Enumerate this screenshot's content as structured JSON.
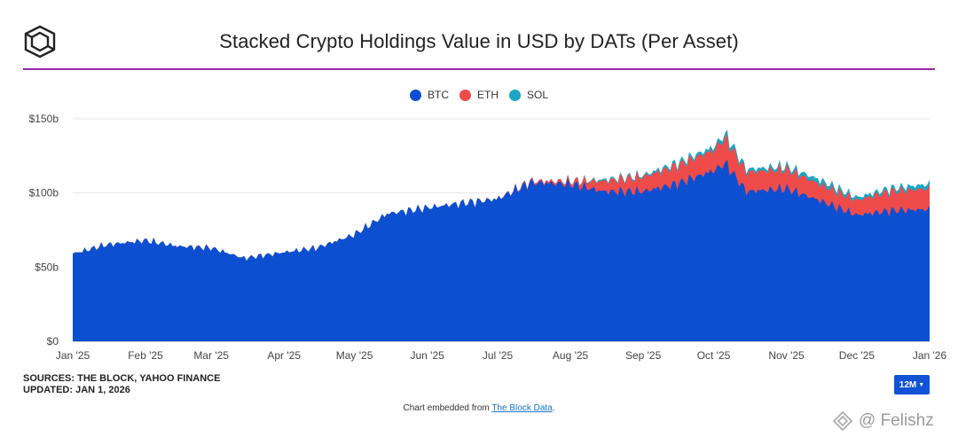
{
  "header": {
    "title": "Stacked Crypto Holdings Value in USD by DATs (Per Asset)"
  },
  "footer": {
    "sources": "SOURCES: THE BLOCK, YAHOO FINANCE",
    "updated": "UPDATED: JAN 1, 2026",
    "range_button": "12M",
    "embed_prefix": "Chart embedded from ",
    "embed_link": "The Block Data",
    "embed_suffix": "."
  },
  "watermark": "@ Felishz",
  "colors": {
    "btc": "#0d4fd1",
    "eth": "#ef4b4b",
    "sol": "#1aa6c4",
    "accent": "#9c27b0"
  },
  "icons": [
    "the-block-logo-icon",
    "chevron-down-icon",
    "watermark-logo-icon"
  ],
  "chart_data": {
    "type": "area",
    "stacked": true,
    "title": "Stacked Crypto Holdings Value in USD by DATs (Per Asset)",
    "y_ticks": [
      "$0",
      "$50b",
      "$100b",
      "$150b"
    ],
    "ylim": [
      0,
      150
    ],
    "x_ticks": [
      "Jan '25",
      "Feb '25",
      "Mar '25",
      "Apr '25",
      "May '25",
      "Jun '25",
      "Jul '25",
      "Aug '25",
      "Sep '25",
      "Oct '25",
      "Nov '25",
      "Dec '25",
      "Jan '26"
    ],
    "legend_position": "top-center",
    "grid": true,
    "x": [
      "2025-01-01",
      "2025-01-15",
      "2025-02-01",
      "2025-02-15",
      "2025-03-01",
      "2025-03-15",
      "2025-04-01",
      "2025-04-15",
      "2025-05-01",
      "2025-05-15",
      "2025-06-01",
      "2025-06-15",
      "2025-07-01",
      "2025-07-15",
      "2025-08-01",
      "2025-08-15",
      "2025-09-01",
      "2025-09-15",
      "2025-10-01",
      "2025-10-06",
      "2025-10-15",
      "2025-11-01",
      "2025-11-15",
      "2025-12-01",
      "2025-12-15",
      "2026-01-01"
    ],
    "series": [
      {
        "name": "BTC",
        "values": [
          59,
          65,
          68,
          64,
          63,
          56,
          60,
          63,
          72,
          86,
          90,
          93,
          96,
          107,
          106,
          101,
          101,
          106,
          115,
          120,
          101,
          103,
          95,
          85,
          88,
          89
        ]
      },
      {
        "name": "ETH",
        "values": [
          0,
          0,
          0,
          0,
          0,
          0,
          0,
          0,
          0,
          0,
          0,
          0,
          0,
          1,
          2,
          7,
          10,
          12,
          14,
          17,
          13,
          13,
          11,
          10,
          13,
          14
        ]
      },
      {
        "name": "SOL",
        "values": [
          0,
          0,
          0,
          0,
          0,
          0,
          0,
          0,
          0,
          0,
          0,
          0,
          0,
          0,
          0,
          1,
          1,
          2,
          2,
          3,
          2,
          2,
          3,
          2,
          2,
          3
        ]
      }
    ]
  }
}
